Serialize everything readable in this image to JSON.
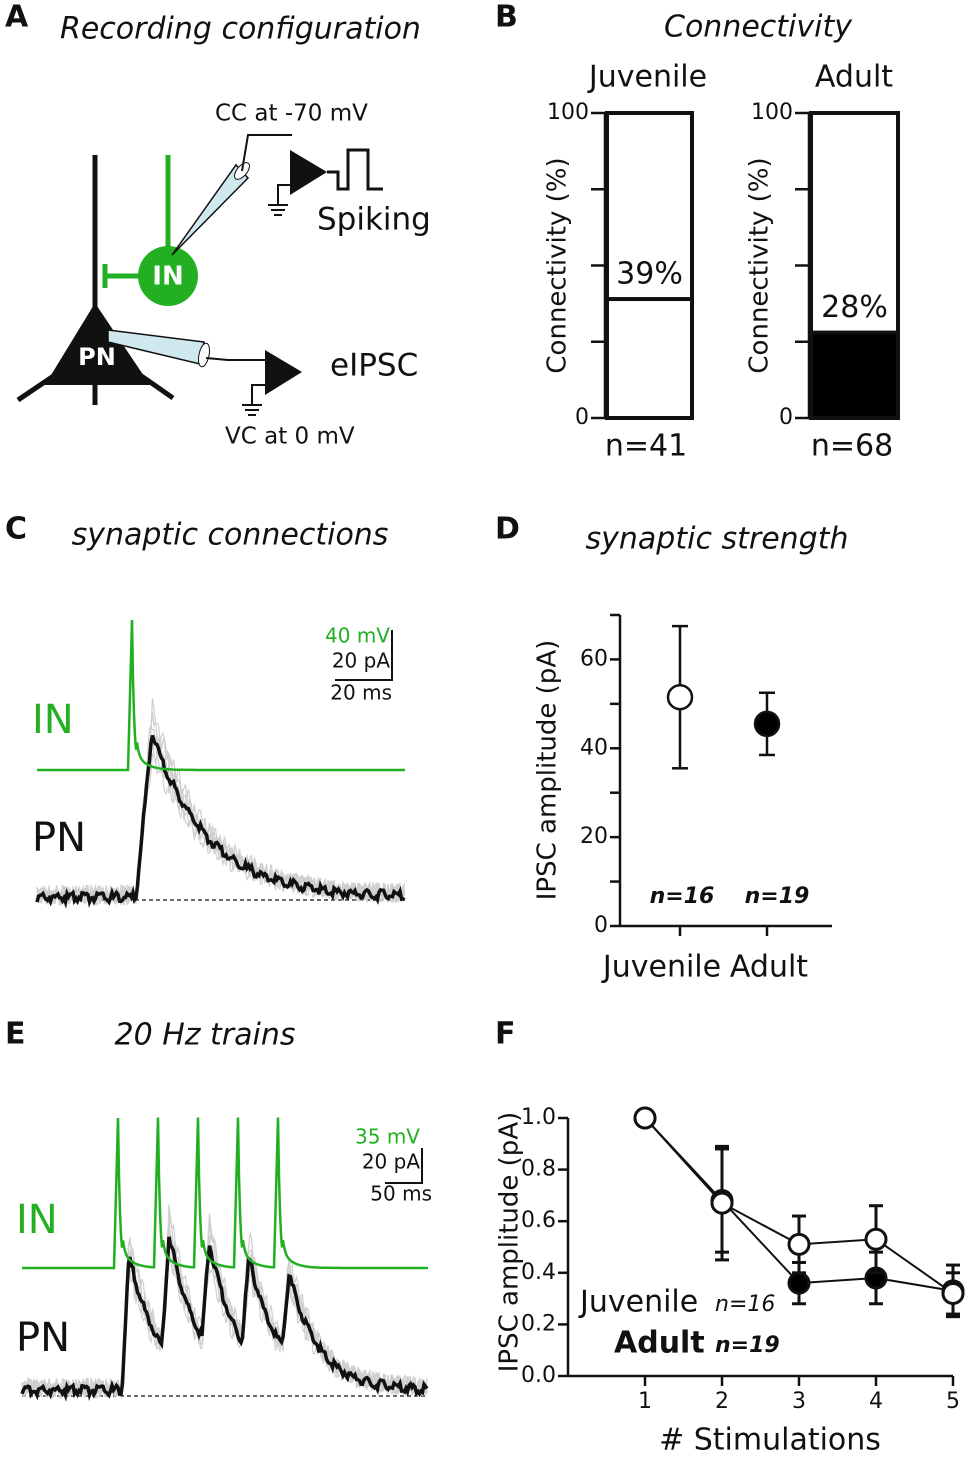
{
  "panel_a": {
    "letter": "A",
    "title": "Recording configuration",
    "cc_label": "CC at -70 mV",
    "spiking_label": "Spiking",
    "in_label": "IN",
    "pn_label": "PN",
    "eipsc_label": "eIPSC",
    "vc_label": "VC at 0 mV"
  },
  "panel_b": {
    "letter": "B",
    "title": "Connectivity"
  },
  "panel_c": {
    "letter": "C",
    "title": "synaptic connections",
    "in_label": "IN",
    "pn_label": "PN",
    "scale_labels": [
      "40 mV",
      "20 pA",
      "20 ms"
    ]
  },
  "panel_d": {
    "letter": "D"
  },
  "panel_e": {
    "letter": "E",
    "title": "20 Hz trains",
    "in_label": "IN",
    "pn_label": "PN",
    "scale_labels": [
      "35 mV",
      "20 pA",
      "50 ms"
    ]
  },
  "panel_f": {
    "letter": "F"
  },
  "chart_data": [
    {
      "type": "bar",
      "title": "Juvenile",
      "ylabel": "Connectivity (%)",
      "values": [
        39
      ],
      "value_labels": [
        "39%"
      ],
      "color": "#ffffff",
      "ylim": [
        0,
        100
      ],
      "yticks": [
        0,
        100
      ],
      "minor_yticks": [
        25,
        50,
        75
      ],
      "n_label": "n=41"
    },
    {
      "type": "bar",
      "title": "Adult",
      "ylabel": "Connectivity (%)",
      "values": [
        28
      ],
      "value_labels": [
        "28%"
      ],
      "color": "#000000",
      "ylim": [
        0,
        100
      ],
      "yticks": [
        0,
        100
      ],
      "minor_yticks": [
        25,
        50,
        75
      ],
      "n_label": "n=68"
    },
    {
      "type": "errorbar",
      "title": "synaptic strength",
      "ylabel": "IPSC amplitude (pA)",
      "categories": [
        "Juvenile",
        "Adult"
      ],
      "values": [
        51.5,
        45.5
      ],
      "errors": [
        16,
        7
      ],
      "colors": [
        "#ffffff",
        "#000000"
      ],
      "n_labels": [
        "n=16",
        "n=19"
      ],
      "ylim": [
        0,
        70
      ],
      "yticks": [
        0,
        20,
        40,
        60
      ],
      "minor_yticks": [
        10,
        30,
        50,
        70
      ]
    },
    {
      "type": "line",
      "xlabel": "# Stimulations",
      "ylabel": "IPSC amplitude (pA)",
      "x": [
        1,
        2,
        3,
        4,
        5
      ],
      "xlim": [
        0,
        5
      ],
      "xticks": [
        1,
        2,
        3,
        4,
        5
      ],
      "ylim": [
        0,
        1
      ],
      "yticks": [
        {
          "value": 0,
          "label": "0.0"
        },
        {
          "value": 0.2,
          "label": "0.2"
        },
        {
          "value": 0.4,
          "label": "0.4"
        },
        {
          "value": 0.6,
          "label": "0.6"
        },
        {
          "value": 0.8,
          "label": "0.8"
        },
        {
          "value": 1,
          "label": "1.0"
        }
      ],
      "series": [
        {
          "name": "Juvenile",
          "n": "n=16",
          "color": "#ffffff",
          "values": [
            1,
            0.67,
            0.51,
            0.53,
            0.32
          ],
          "errors": [
            0,
            0.22,
            0.11,
            0.13,
            0.08
          ]
        },
        {
          "name": "Adult",
          "n": "n=19",
          "color": "#000000",
          "values": [
            1,
            0.68,
            0.36,
            0.38,
            0.33
          ],
          "errors": [
            0,
            0.2,
            0.08,
            0.1,
            0.1
          ]
        }
      ]
    }
  ]
}
